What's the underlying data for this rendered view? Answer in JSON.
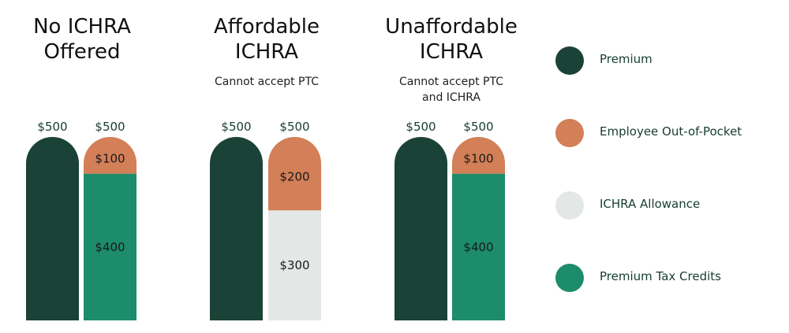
{
  "colors": {
    "premium": "#1b4236",
    "oop": "#d37f57",
    "allowance": "#e3e7e6",
    "ptc": "#1c8c6a",
    "text": "#163d30"
  },
  "legend": [
    {
      "label": "Premium",
      "color": "#1b4236"
    },
    {
      "label": "Employee Out-of-Pocket",
      "color": "#d37f57"
    },
    {
      "label": "ICHRA Allowance",
      "color": "#e3e7e6"
    },
    {
      "label": "Premium Tax Credits",
      "color": "#1c8c6a"
    }
  ],
  "groups": [
    {
      "title_line1": "No ICHRA",
      "title_line2": "Offered",
      "sub_line1": "",
      "sub_line2": ""
    },
    {
      "title_line1": "Affordable",
      "title_line2": "ICHRA",
      "sub_line1": "Cannot accept PTC",
      "sub_line2": ""
    },
    {
      "title_line1": "Unaffordable",
      "title_line2": "ICHRA",
      "sub_line1": "Cannot accept PTC",
      "sub_line2": "and ICHRA"
    }
  ],
  "chart_data": {
    "type": "bar",
    "ylim": [
      0,
      500
    ],
    "categories": [
      "No ICHRA Offered",
      "Affordable ICHRA",
      "Unaffordable ICHRA"
    ],
    "bars": [
      {
        "group": 0,
        "total_label": "$500",
        "segments": [
          {
            "series": "Premium",
            "value": 500,
            "label": ""
          }
        ]
      },
      {
        "group": 0,
        "total_label": "$500",
        "segments": [
          {
            "series": "Premium Tax Credits",
            "value": 400,
            "label": "$400"
          },
          {
            "series": "Employee Out-of-Pocket",
            "value": 100,
            "label": "$100"
          }
        ]
      },
      {
        "group": 1,
        "total_label": "$500",
        "segments": [
          {
            "series": "Premium",
            "value": 500,
            "label": ""
          }
        ]
      },
      {
        "group": 1,
        "total_label": "$500",
        "segments": [
          {
            "series": "ICHRA Allowance",
            "value": 300,
            "label": "$300"
          },
          {
            "series": "Employee Out-of-Pocket",
            "value": 200,
            "label": "$200"
          }
        ]
      },
      {
        "group": 2,
        "total_label": "$500",
        "segments": [
          {
            "series": "Premium",
            "value": 500,
            "label": ""
          }
        ]
      },
      {
        "group": 2,
        "total_label": "$500",
        "segments": [
          {
            "series": "Premium Tax Credits",
            "value": 400,
            "label": "$400"
          },
          {
            "series": "Employee Out-of-Pocket",
            "value": 100,
            "label": "$100"
          }
        ]
      }
    ]
  }
}
